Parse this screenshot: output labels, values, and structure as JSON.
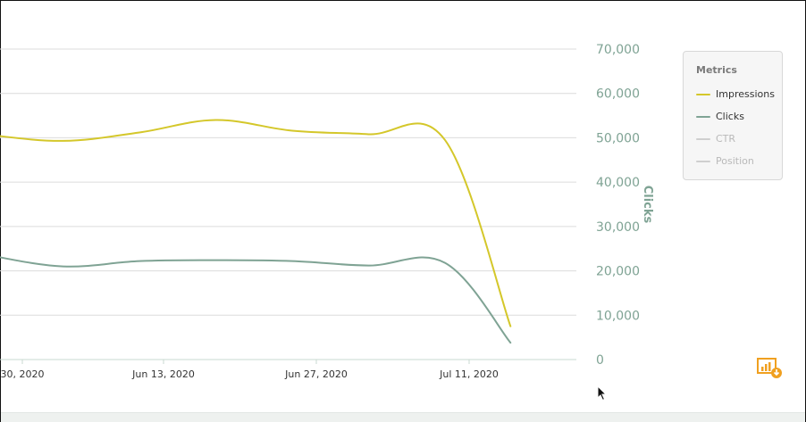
{
  "chart_data": {
    "type": "line",
    "x_ticks": [
      "30, 2020",
      "Jun 13, 2020",
      "Jun 27, 2020",
      "Jul 11, 2020"
    ],
    "ylabel": "Clicks",
    "ylim": [
      0,
      70000
    ],
    "y_ticks": [
      "0",
      "10,000",
      "20,000",
      "30,000",
      "40,000",
      "50,000",
      "60,000",
      "70,000"
    ],
    "grid": true,
    "legend_placement": "right",
    "series": [
      {
        "name": "Impressions",
        "color": "#d4c72a",
        "points": [
          [
            "May 30, 2020",
            50700
          ],
          [
            "Jun 6, 2020",
            49300
          ],
          [
            "Jun 13, 2020",
            51200
          ],
          [
            "Jun 20, 2020",
            54000
          ],
          [
            "Jun 27, 2020",
            51600
          ],
          [
            "Jul 4, 2020",
            50800
          ],
          [
            "Jul 11, 2020",
            49500
          ],
          [
            "Jul 17, 2020",
            7500
          ]
        ]
      },
      {
        "name": "Clicks",
        "color": "#7fa394",
        "points": [
          [
            "May 30, 2020",
            23600
          ],
          [
            "Jun 6, 2020",
            21000
          ],
          [
            "Jun 13, 2020",
            22200
          ],
          [
            "Jun 20, 2020",
            22400
          ],
          [
            "Jun 27, 2020",
            22200
          ],
          [
            "Jul 4, 2020",
            21200
          ],
          [
            "Jul 11, 2020",
            21800
          ],
          [
            "Jul 17, 2020",
            3800
          ]
        ]
      }
    ]
  },
  "legend": {
    "title": "Metrics",
    "items": [
      {
        "label": "Impressions",
        "color": "#d4c72a",
        "active": true
      },
      {
        "label": "Clicks",
        "color": "#7fa394",
        "active": true
      },
      {
        "label": "CTR",
        "color": "#cfcfcf",
        "active": false
      },
      {
        "label": "Position",
        "color": "#cfcfcf",
        "active": false
      }
    ]
  },
  "export_icon": "chart-download-icon",
  "colors": {
    "axis_text": "#7fa394",
    "grid": "#dcdcdc",
    "accent": "#f0a020"
  }
}
